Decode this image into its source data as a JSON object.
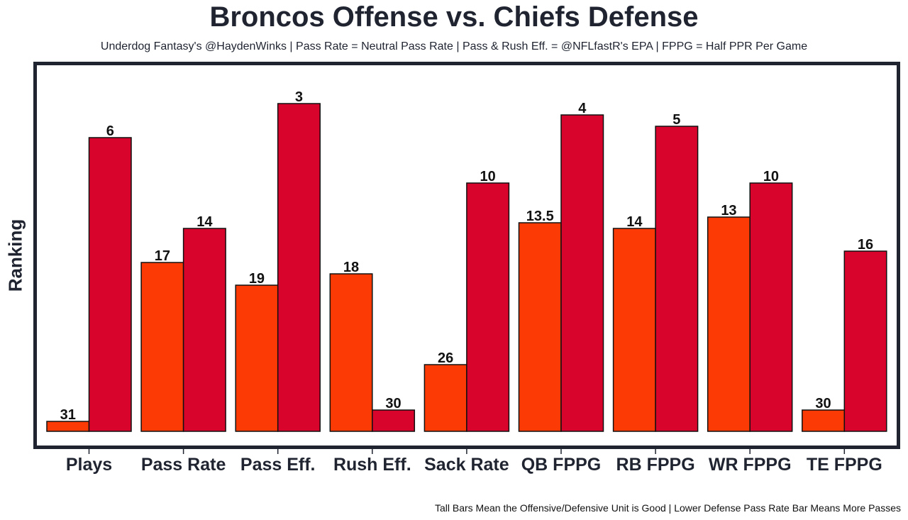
{
  "chart_data": {
    "type": "bar",
    "title": "Broncos Offense vs. Chiefs Defense",
    "subtitle": "Underdog Fantasy's @HaydenWinks | Pass Rate = Neutral Pass Rate | Pass & Rush Eff. = @NFLfastR's EPA | FPPG = Half PPR Per Game",
    "caption": "Tall Bars Mean the Offensive/Defensive Unit is Good | Lower Defense Pass Rate Bar Means More Passes",
    "ylabel": "Ranking",
    "xlabel": "",
    "categories": [
      "Plays",
      "Pass Rate",
      "Pass Eff.",
      "Rush Eff.",
      "Sack Rate",
      "QB FPPG",
      "RB FPPG",
      "WR FPPG",
      "TE FPPG"
    ],
    "series": [
      {
        "name": "Broncos Offense",
        "color": "#FC3A05",
        "values": [
          31,
          17,
          19,
          18,
          26,
          13.5,
          14,
          13,
          30
        ]
      },
      {
        "name": "Chiefs Defense",
        "color": "#D9042B",
        "values": [
          6,
          14,
          3,
          30,
          10,
          4,
          5,
          10,
          16
        ]
      }
    ],
    "ylim": [
      32,
      0
    ],
    "grid": false
  }
}
